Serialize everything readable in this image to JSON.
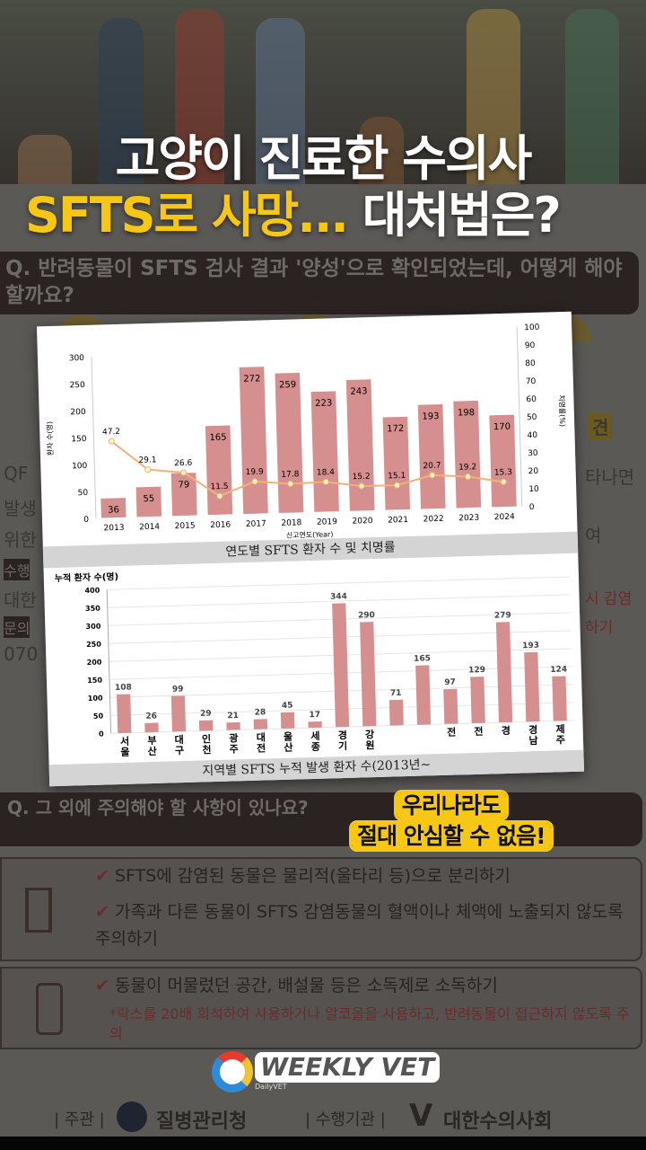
{
  "headline": {
    "line1": "고양이 진료한 수의사",
    "line2_highlight": "SFTS로 사망...",
    "line2_rest": "대처법은?",
    "highlight_color": "#f7c716"
  },
  "background": {
    "question1": "Q. 반려동물이 SFTS 검사 결과 '양성'으로 확인되었는데, 어떻게 해야 할까요?",
    "left_fragments": [
      "QF",
      "발생",
      "위한",
      "수행",
      "대한",
      "문의",
      "070"
    ],
    "right_fragments": [
      "타나면",
      "여",
      "시 감염",
      "하기",
      "견"
    ],
    "question2": "Q. 그 외에 주의해야 할 사항이 있나요?",
    "panel1_items": [
      "SFTS에 감염된 동물은 물리적(울타리 등)으로 분리하기",
      "가족과 다른 동물이 SFTS 감염동물의 혈액이나 체액에 노출되지 않도록 주의하기"
    ],
    "panel2_items": [
      "동물이 머물렀던 공간, 배설물 등은 소독제로 소독하기"
    ],
    "panel2_note": "*락스를 20배 희석하여 사용하거나 알코올을 사용하고, 반려동물이 접근하지 않도록 주의",
    "footer": {
      "host_label": "| 주관 |",
      "host": "질병관리청",
      "operator_label": "| 수행기관 |",
      "operator": "대한수의사회"
    }
  },
  "callout": {
    "line1": "우리나라도",
    "line2": "절대 안심할 수 없음!"
  },
  "logo": {
    "text": "WEEKLY VET",
    "sub": "DailyVET"
  },
  "chart_data": [
    {
      "type": "bar+line",
      "title": "연도별 SFTS 환자 수 및 치명률",
      "xlabel": "신고연도(Year)",
      "ylabel": "환자 수(명)",
      "y2label": "치명률(%)",
      "categories": [
        "2013",
        "2014",
        "2015",
        "2016",
        "2017",
        "2018",
        "2019",
        "2020",
        "2021",
        "2022",
        "2023",
        "2024"
      ],
      "series": [
        {
          "name": "환자 수",
          "type": "bar",
          "values": [
            36,
            55,
            79,
            165,
            272,
            259,
            223,
            243,
            172,
            193,
            198,
            170
          ],
          "color": "#d58f8f"
        },
        {
          "name": "치명률",
          "type": "line",
          "axis": "right",
          "values": [
            47.2,
            29.1,
            26.6,
            11.5,
            19.9,
            17.8,
            18.4,
            15.2,
            15.1,
            20.7,
            19.2,
            15.3
          ],
          "color": "#f4b07a"
        }
      ],
      "ylim": [
        0,
        300
      ],
      "yticks": [
        0,
        50,
        100,
        150,
        200,
        250,
        300
      ],
      "y2lim": [
        0,
        100
      ],
      "y2ticks": [
        0,
        10,
        20,
        30,
        40,
        50,
        60,
        70,
        80,
        90,
        100
      ]
    },
    {
      "type": "bar",
      "title": "지역별 SFTS 누적 발생 환자 수(2013년~",
      "ylabel": "누적 환자 수(명)",
      "categories": [
        "서울",
        "부산",
        "대구",
        "인천",
        "광주",
        "대전",
        "울산",
        "세종",
        "경기",
        "강원",
        "",
        "",
        "전",
        "전",
        "경",
        "경남",
        "제주"
      ],
      "values": [
        108,
        26,
        99,
        29,
        21,
        28,
        45,
        17,
        344,
        290,
        71,
        165,
        97,
        129,
        279,
        193,
        124
      ],
      "color": "#d58f8f",
      "ylim": [
        0,
        400
      ],
      "yticks": [
        0,
        50,
        100,
        150,
        200,
        250,
        300,
        350,
        400
      ]
    }
  ]
}
